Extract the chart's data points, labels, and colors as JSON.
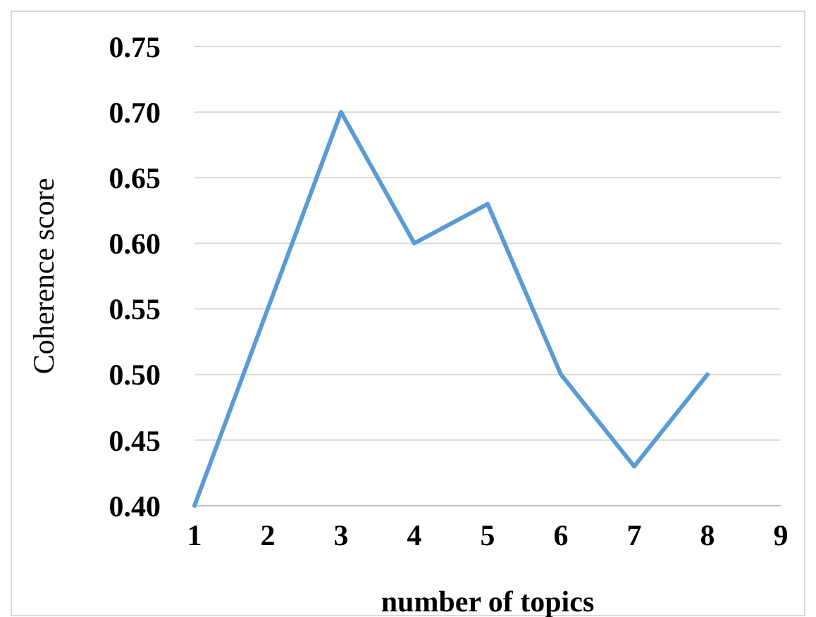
{
  "chart_data": {
    "type": "line",
    "xlabel": "number of topics",
    "ylabel": "Coherence score",
    "x": [
      1,
      2,
      3,
      4,
      5,
      6,
      7,
      8
    ],
    "series": [
      {
        "color": "#5b9bd5",
        "values": [
          0.4,
          0.55,
          0.7,
          0.6,
          0.63,
          0.5,
          0.43,
          0.5
        ]
      }
    ],
    "xlim": [
      1,
      9
    ],
    "xticks": [
      1,
      2,
      3,
      4,
      5,
      6,
      7,
      8,
      9
    ],
    "ylim": [
      0.4,
      0.75
    ],
    "yticks": [
      {
        "value": 0.4,
        "label": "0.40"
      },
      {
        "value": 0.45,
        "label": "0.45"
      },
      {
        "value": 0.5,
        "label": "0.50"
      },
      {
        "value": 0.55,
        "label": "0.55"
      },
      {
        "value": 0.6,
        "label": "0.60"
      },
      {
        "value": 0.65,
        "label": "0.65"
      },
      {
        "value": 0.7,
        "label": "0.70"
      },
      {
        "value": 0.75,
        "label": "0.75"
      }
    ],
    "grid": "y",
    "marker": "none",
    "line_style": "solid"
  }
}
